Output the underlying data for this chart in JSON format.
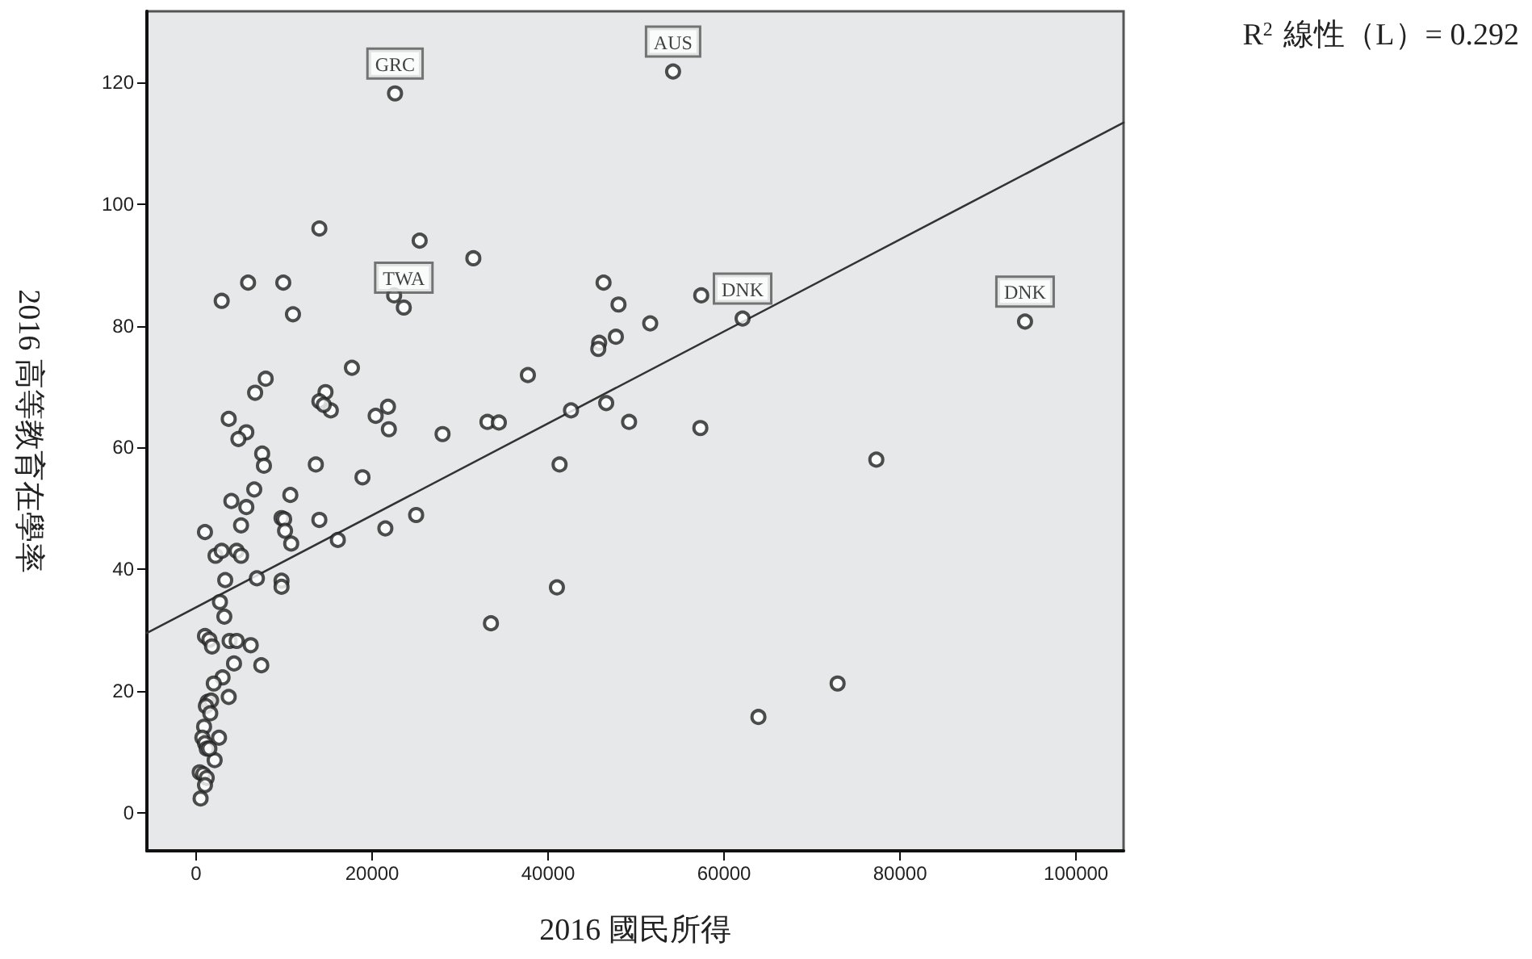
{
  "chart_data": {
    "type": "scatter",
    "xlabel": "2016 國民所得",
    "ylabel": "2016 高等教育在學率",
    "xlim": [
      -5600,
      105400
    ],
    "ylim": [
      -6.3,
      131.7
    ],
    "xticks": [
      0,
      20000,
      40000,
      60000,
      80000,
      100000
    ],
    "yticks": [
      0,
      20,
      40,
      60,
      80,
      100,
      120
    ],
    "grid": false,
    "marker": "circle",
    "annotations": [
      "R$^{2}$ 線性（L）= 0.292",
      {
        "text": "GRC",
        "x": 22600,
        "y": 118.2
      },
      {
        "text": "AUS",
        "x": 54200,
        "y": 121.8
      },
      {
        "text": "TWA",
        "x": 23600,
        "y": 83
      },
      {
        "text": "DNK",
        "x": 62100,
        "y": 81.2
      },
      {
        "text": "DNK",
        "x": 94200,
        "y": 80.7
      }
    ],
    "series": [
      {
        "color": "#222222",
        "x": [
          22600,
          54200,
          14000,
          25400,
          31500,
          2900,
          5900,
          9900,
          11000,
          22500,
          23600,
          17700,
          7900,
          6700,
          14700,
          14000,
          15300,
          14500,
          21800,
          20400,
          21900,
          28000,
          33100,
          34400,
          3700,
          5700,
          4800,
          7500,
          7700,
          13600,
          18900,
          6600,
          10700,
          4000,
          5700,
          5100,
          9700,
          10000,
          10100,
          10800,
          14000,
          16100,
          21500,
          25000,
          1000,
          2200,
          2900,
          4600,
          5100,
          3300,
          6900,
          9700,
          9700,
          2700,
          3200,
          33500,
          1000,
          1500,
          1800,
          3800,
          4600,
          6200,
          4300,
          7400,
          3000,
          2000,
          3700,
          1300,
          1700,
          1100,
          1600,
          2600,
          2100,
          900,
          700,
          1000,
          1200,
          1500,
          400,
          800,
          1200,
          1000,
          500,
          46300,
          48000,
          57400,
          51600,
          62100,
          94200,
          47700,
          45800,
          45700,
          37700,
          42600,
          46600,
          49200,
          57300,
          41300,
          77300,
          41000,
          72900,
          63900
        ],
        "values": [
          118.2,
          121.8,
          96.0,
          94.0,
          91.1,
          84.1,
          87.1,
          87.1,
          81.9,
          85.0,
          83.0,
          73.1,
          71.3,
          69.0,
          69.1,
          67.6,
          66.1,
          67.0,
          66.7,
          65.2,
          63.0,
          62.2,
          64.2,
          64.1,
          64.7,
          62.5,
          61.4,
          59.0,
          57.0,
          57.2,
          55.1,
          53.1,
          52.2,
          51.2,
          50.2,
          47.2,
          48.4,
          48.2,
          46.3,
          44.2,
          48.1,
          44.8,
          46.7,
          48.9,
          46.1,
          42.2,
          43.0,
          43.0,
          42.2,
          38.2,
          38.5,
          38.1,
          37.1,
          34.6,
          32.2,
          31.1,
          29.0,
          28.4,
          27.3,
          28.2,
          28.2,
          27.5,
          24.5,
          24.2,
          22.2,
          21.2,
          19.0,
          18.2,
          18.4,
          17.5,
          16.3,
          12.3,
          8.6,
          14.1,
          12.3,
          11.4,
          10.5,
          10.5,
          6.6,
          6.3,
          5.7,
          4.5,
          2.3,
          87.1,
          83.5,
          85.0,
          80.4,
          81.2,
          80.7,
          78.2,
          77.2,
          76.2,
          71.9,
          66.1,
          67.3,
          64.2,
          63.2,
          57.2,
          58.0,
          37.0,
          21.2,
          15.7
        ]
      },
      {
        "type": "line",
        "color": "#333333",
        "marker": "none",
        "x": [
          -5600,
          105400
        ],
        "values": [
          29.5,
          113.4
        ]
      }
    ]
  }
}
